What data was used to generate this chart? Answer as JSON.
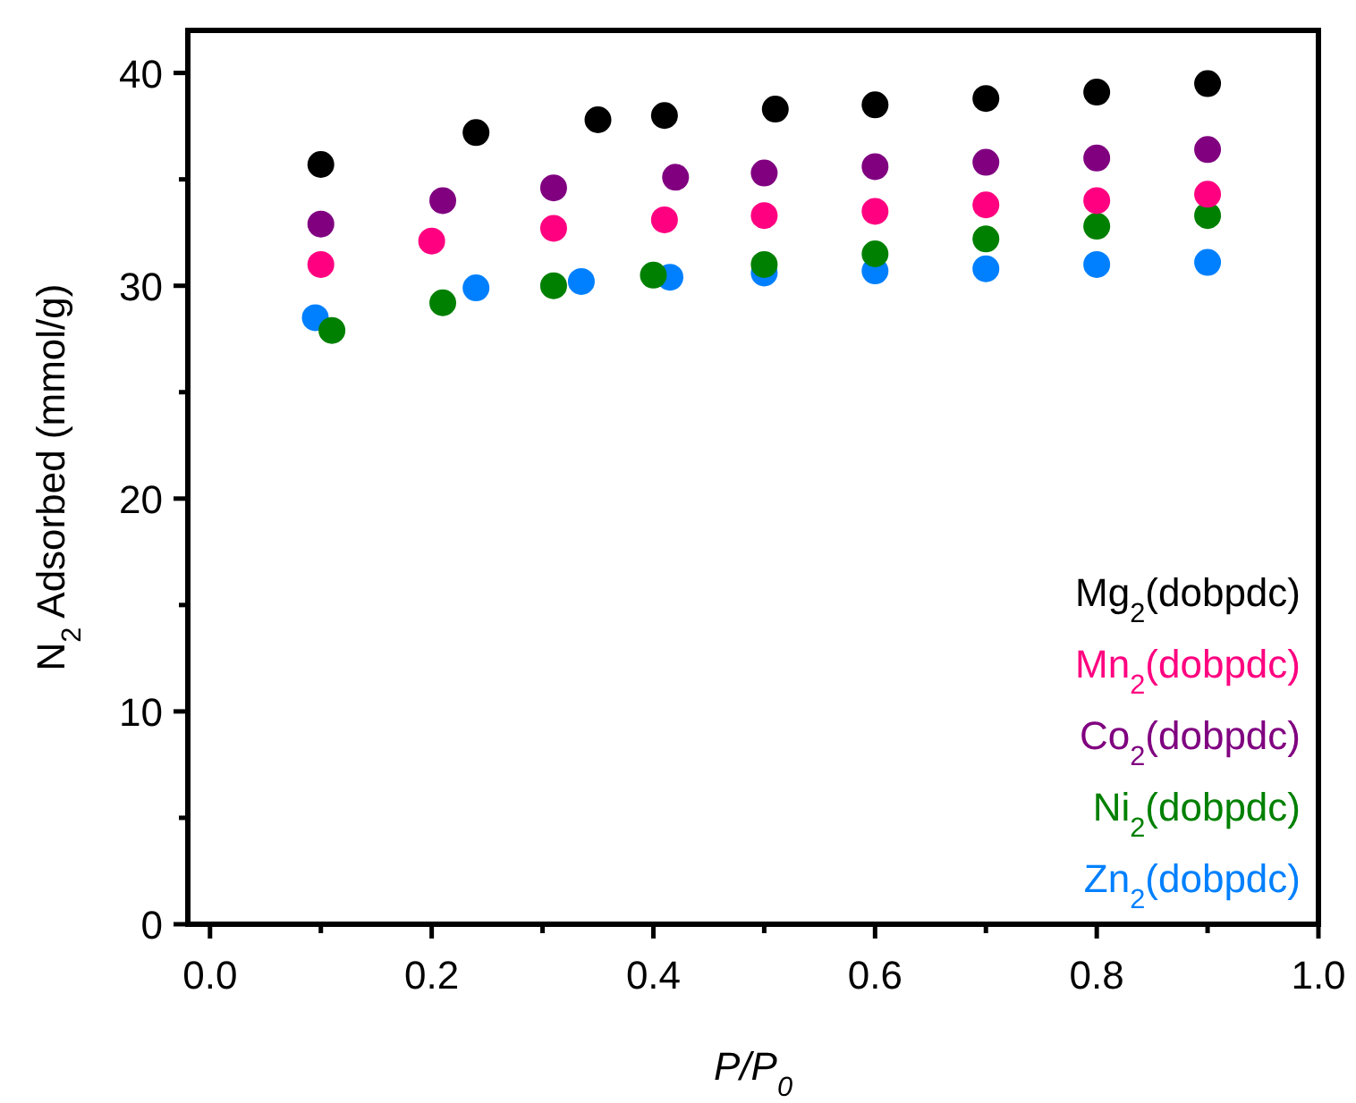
{
  "chart_data": {
    "type": "scatter",
    "xlabel": "P/P$_{0}$",
    "ylabel": "N$_{2}$ Adsorbed (mmol/g)",
    "xlim": [
      -0.02,
      1.0
    ],
    "ylim": [
      0,
      42
    ],
    "xticks": [
      {
        "value": 0,
        "label": "0.0"
      },
      {
        "value": 0.1,
        "label": null
      },
      {
        "value": 0.2,
        "label": "0.2"
      },
      {
        "value": 0.3,
        "label": null
      },
      {
        "value": 0.4,
        "label": "0.4"
      },
      {
        "value": 0.5,
        "label": null
      },
      {
        "value": 0.6,
        "label": "0.6"
      },
      {
        "value": 0.7,
        "label": null
      },
      {
        "value": 0.8,
        "label": "0.8"
      },
      {
        "value": 0.9,
        "label": null
      },
      {
        "value": 1.0,
        "label": "1.0"
      }
    ],
    "yticks": [
      0,
      {
        "value": 5,
        "label": null
      },
      10,
      {
        "value": 15,
        "label": null
      },
      20,
      {
        "value": 25,
        "label": null
      },
      30,
      {
        "value": 35,
        "label": null
      },
      40
    ],
    "grid": false,
    "marker": "circle",
    "legend": "bottom right",
    "series": [
      {
        "name": "Mg$_{2}$(dobpdc)",
        "color": "#000000",
        "x": [
          0.1,
          0.24,
          0.35,
          0.41,
          0.51,
          0.6,
          0.7,
          0.8,
          0.9
        ],
        "values": [
          35.7,
          37.2,
          37.8,
          38.0,
          38.3,
          38.5,
          38.8,
          39.1,
          39.5
        ]
      },
      {
        "name": "Mn$_{2}$(dobpdc)",
        "color": "#ff0080",
        "x": [
          0.1,
          0.2,
          0.31,
          0.41,
          0.5,
          0.6,
          0.7,
          0.8,
          0.9
        ],
        "values": [
          31.0,
          32.1,
          32.7,
          33.1,
          33.3,
          33.5,
          33.8,
          34.0,
          34.3
        ]
      },
      {
        "name": "Co$_{2}$(dobpdc)",
        "color": "#800080",
        "x": [
          0.1,
          0.21,
          0.31,
          0.42,
          0.5,
          0.6,
          0.7,
          0.8,
          0.9
        ],
        "values": [
          32.9,
          34.0,
          34.6,
          35.1,
          35.3,
          35.6,
          35.8,
          36.0,
          36.4
        ]
      },
      {
        "name": "Ni$_{2}$(dobpdc)",
        "color": "#008000",
        "x": [
          0.11,
          0.21,
          0.31,
          0.4,
          0.5,
          0.6,
          0.7,
          0.8,
          0.9
        ],
        "values": [
          27.9,
          29.2,
          30.0,
          30.5,
          31.0,
          31.5,
          32.2,
          32.8,
          33.3
        ]
      },
      {
        "name": "Zn$_{2}$(dobpdc)",
        "color": "#0080ff",
        "x": [
          0.095,
          0.24,
          0.335,
          0.415,
          0.5,
          0.6,
          0.7,
          0.8,
          0.9
        ],
        "values": [
          28.5,
          29.9,
          30.2,
          30.4,
          30.6,
          30.7,
          30.8,
          31.0,
          31.1
        ]
      }
    ]
  }
}
